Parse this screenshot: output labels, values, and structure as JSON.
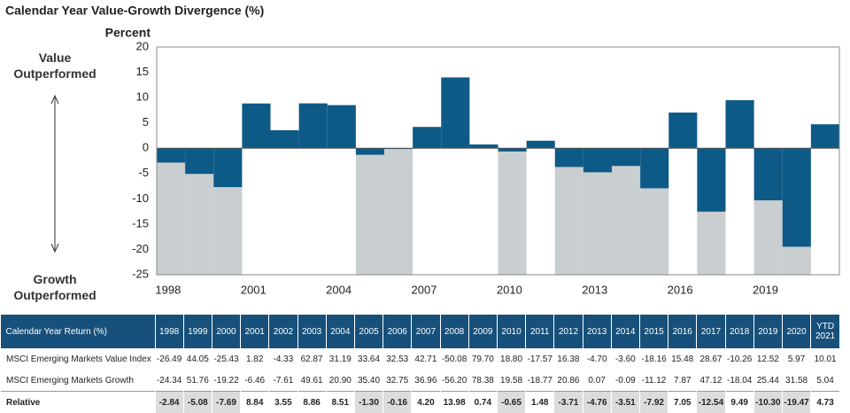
{
  "chart_data": {
    "type": "bar",
    "title": "Calendar Year Value-Growth Divergence (%)",
    "y_label": "Percent",
    "annotations": [
      "Value Outperformed",
      "Growth Outperformed"
    ],
    "categories": [
      "1998",
      null,
      null,
      "2001",
      null,
      null,
      "2004",
      null,
      null,
      "2007",
      null,
      null,
      "2010",
      null,
      null,
      "2013",
      null,
      null,
      "2016",
      null,
      null,
      "2019",
      null,
      null
    ],
    "values": [
      -2.84,
      -5.08,
      -7.69,
      8.84,
      3.55,
      8.86,
      8.51,
      -1.3,
      -0.16,
      4.2,
      13.98,
      0.74,
      -0.65,
      1.48,
      -3.71,
      -4.76,
      -3.51,
      -7.92,
      7.05,
      -12.54,
      9.49,
      -10.3,
      -19.47,
      4.73
    ],
    "color": "#0e5a87",
    "shade_color": "#c9ced1",
    "ylim": [
      -25,
      20
    ],
    "yticks": [
      20,
      15,
      10,
      5,
      0,
      -5,
      -10,
      -15,
      -20,
      -25
    ]
  },
  "table": {
    "header": [
      "Calendar Year Return (%)",
      "1998",
      "1999",
      "2000",
      "2001",
      "2002",
      "2003",
      "2004",
      "2005",
      "2006",
      "2007",
      "2008",
      "2009",
      "2010",
      "2011",
      "2012",
      "2013",
      "2014",
      "2015",
      "2016",
      "2017",
      "2018",
      "2019",
      "2020",
      "YTD 2021"
    ],
    "rows": [
      [
        "MSCI Emerging Markets Value Index",
        "-26.49",
        "44.05",
        "-25.43",
        "1.82",
        "-4.33",
        "62.87",
        "31.19",
        "33.64",
        "32.53",
        "42.71",
        "-50.08",
        "79.70",
        "18.80",
        "-17.57",
        "16.38",
        "-4.70",
        "-3.60",
        "-18.16",
        "15.48",
        "28.67",
        "-10.26",
        "12.52",
        "5.97",
        "10.01"
      ],
      [
        "MSCI Emerging Markets Growth",
        "-24.34",
        "51.76",
        "-19.22",
        "-6.46",
        "-7.61",
        "49.61",
        "20.90",
        "35.40",
        "32.75",
        "36.96",
        "-56.20",
        "78.38",
        "19.58",
        "-18.77",
        "20.86",
        "0.07",
        "-0.09",
        "-11.12",
        "7.87",
        "47.12",
        "-18.04",
        "25.44",
        "31.58",
        "5.04"
      ],
      [
        "Relative",
        "-2.84",
        "-5.08",
        "-7.69",
        "8.84",
        "3.55",
        "8.86",
        "8.51",
        "-1.30",
        "-0.16",
        "4.20",
        "13.98",
        "0.74",
        "-0.65",
        "1.48",
        "-3.71",
        "-4.76",
        "-3.51",
        "-7.92",
        "7.05",
        "-12.54",
        "9.49",
        "-10.30",
        "-19.47",
        "4.73"
      ]
    ]
  }
}
